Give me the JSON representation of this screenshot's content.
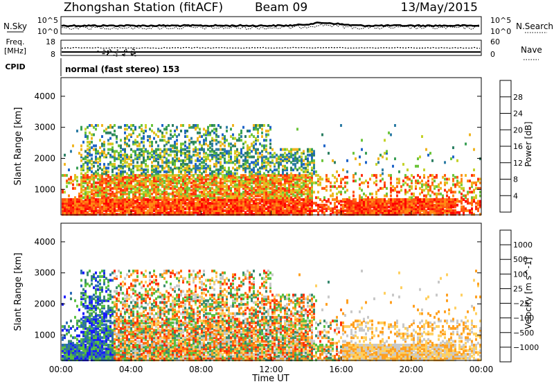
{
  "header": {
    "station": "Zhongshan Station (fitACF)",
    "beam": "Beam 09",
    "date": "13/May/2015"
  },
  "top_panels": {
    "nsky_label": "N.Sky",
    "nsky_ticks": [
      "10^5",
      "10^0"
    ],
    "nsearch_label": "N.Search",
    "nsearch_ticks": [
      "10^5",
      "10^0"
    ],
    "freq_label_1": "Freq.",
    "freq_label_2": "[MHz]",
    "freq_ticks": [
      "18",
      "8"
    ],
    "nave_label": "Nave",
    "nave_ticks": [
      "60",
      "0"
    ],
    "cpid_label": "CPID",
    "cpid_value": "normal (fast stereo) 153"
  },
  "chart_data": [
    {
      "type": "heatmap",
      "name": "power",
      "ylabel": "Slant Range [km]",
      "ylim": [
        180,
        4600
      ],
      "yticks": [
        "1000",
        "2000",
        "3000",
        "4000"
      ],
      "colorbar": {
        "label": "Power [dB]",
        "ticks": [
          "28",
          "24",
          "20",
          "16",
          "12",
          "8",
          "4"
        ],
        "colors": [
          "#0a1cff",
          "#1e64c8",
          "#2e7da5",
          "#2c7f63",
          "#3aa055",
          "#6bc43a",
          "#c4d22a",
          "#f0b41e",
          "#ff8a14",
          "#ff5a10",
          "#ff2e0c",
          "#ff0000"
        ]
      }
    },
    {
      "type": "heatmap",
      "name": "velocity",
      "ylabel": "Slant Range [km]",
      "ylim": [
        180,
        4600
      ],
      "yticks": [
        "1000",
        "2000",
        "3000",
        "4000"
      ],
      "xlabel": "Time UT",
      "xticks": [
        "00:00",
        "04:00",
        "08:00",
        "12:00",
        "16:00",
        "20:00",
        "00:00"
      ],
      "colorbar": {
        "label": "Velocity [m s^-1]",
        "ticks": [
          "1000",
          "500",
          "100",
          "25",
          "−25",
          "−100",
          "−500",
          "−1000"
        ],
        "colors": [
          "#1a1aff",
          "#2a6ab8",
          "#3a8a70",
          "#5ac040",
          "#c8c8c8",
          "#ffd060",
          "#ffa020",
          "#ff7010",
          "#ff3008",
          "#ff0000"
        ]
      }
    }
  ]
}
